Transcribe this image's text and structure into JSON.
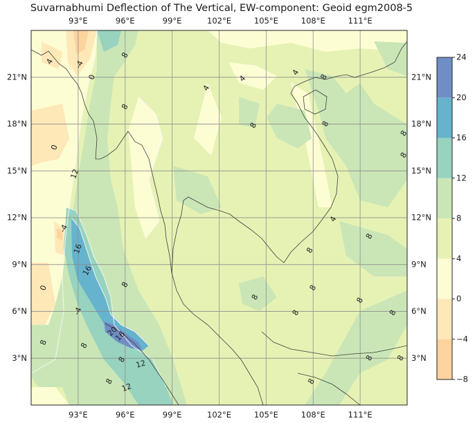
{
  "title": "Suvarnabhumi Deflection of The Vertical, EW-component: Geoid egm2008-5",
  "chart_data": {
    "type": "heatmap",
    "title": "Suvarnabhumi Deflection of The Vertical, EW-component: Geoid egm2008-5",
    "xlim": [
      90,
      114
    ],
    "ylim": [
      0,
      24
    ],
    "lon_ticks": [
      93,
      96,
      99,
      102,
      105,
      108,
      111
    ],
    "lat_ticks": [
      3,
      6,
      9,
      12,
      15,
      18,
      21
    ],
    "lon_tick_labels": [
      "93°E",
      "96°E",
      "99°E",
      "102°E",
      "105°E",
      "108°E",
      "111°E"
    ],
    "lat_tick_labels": [
      "3°N",
      "6°N",
      "9°N",
      "12°N",
      "15°N",
      "18°N",
      "21°N"
    ],
    "grid": true,
    "colorbar": {
      "levels": [
        -8,
        -4,
        0,
        4,
        8,
        12,
        16,
        20,
        24
      ],
      "tick_labels": [
        "−8",
        "−4",
        "0",
        "4",
        "8",
        "12",
        "16",
        "20",
        "24"
      ],
      "colors": [
        "#fdd49e",
        "#fee8b8",
        "#fdfdd4",
        "#e6f2b4",
        "#cae6b6",
        "#97d3bf",
        "#66b3cd",
        "#6f8ec6"
      ],
      "placement": "right"
    },
    "contour_labels": [
      {
        "text": "4",
        "lon": 91.2,
        "lat": 22.0,
        "rot": -60
      },
      {
        "text": "-4",
        "lon": 93.1,
        "lat": 21.8,
        "rot": -65
      },
      {
        "text": "0",
        "lon": 93.9,
        "lat": 21.0,
        "rot": -70
      },
      {
        "text": "8",
        "lon": 96.0,
        "lat": 22.4,
        "rot": -60
      },
      {
        "text": "8",
        "lon": 96.0,
        "lat": 19.1,
        "rot": -60
      },
      {
        "text": "4",
        "lon": 101.2,
        "lat": 20.3,
        "rot": -60
      },
      {
        "text": "4",
        "lon": 103.5,
        "lat": 20.9,
        "rot": -45
      },
      {
        "text": "8",
        "lon": 104.2,
        "lat": 17.9,
        "rot": -60
      },
      {
        "text": "4",
        "lon": 106.9,
        "lat": 21.3,
        "rot": -60
      },
      {
        "text": "8",
        "lon": 108.7,
        "lat": 21.0,
        "rot": -60
      },
      {
        "text": "8",
        "lon": 108.8,
        "lat": 18.0,
        "rot": -60
      },
      {
        "text": "8",
        "lon": 113.8,
        "lat": 17.4,
        "rot": -60
      },
      {
        "text": "8",
        "lon": 113.8,
        "lat": 16.0,
        "rot": -60
      },
      {
        "text": "0",
        "lon": 91.5,
        "lat": 16.5,
        "rot": -70
      },
      {
        "text": "12",
        "lon": 92.8,
        "lat": 14.8,
        "rot": -70
      },
      {
        "text": "-4",
        "lon": 92.1,
        "lat": 11.3,
        "rot": -65
      },
      {
        "text": "16",
        "lon": 93.0,
        "lat": 10.0,
        "rot": -70
      },
      {
        "text": "16",
        "lon": 93.6,
        "lat": 8.6,
        "rot": -60
      },
      {
        "text": "4",
        "lon": 109.3,
        "lat": 11.9,
        "rot": -60
      },
      {
        "text": "8",
        "lon": 111.6,
        "lat": 10.8,
        "rot": -60
      },
      {
        "text": "8",
        "lon": 107.8,
        "lat": 9.9,
        "rot": -60
      },
      {
        "text": "0",
        "lon": 90.8,
        "lat": 7.5,
        "rot": -70
      },
      {
        "text": "8",
        "lon": 96.0,
        "lat": 7.7,
        "rot": -60
      },
      {
        "text": "8",
        "lon": 108.0,
        "lat": 7.5,
        "rot": -60
      },
      {
        "text": "8",
        "lon": 104.3,
        "lat": 6.9,
        "rot": -60
      },
      {
        "text": "8",
        "lon": 111.0,
        "lat": 6.7,
        "rot": -60
      },
      {
        "text": "8",
        "lon": 106.9,
        "lat": 5.9,
        "rot": -60
      },
      {
        "text": "8",
        "lon": 113.1,
        "lat": 5.9,
        "rot": -60
      },
      {
        "text": "-4",
        "lon": 93.0,
        "lat": 6.0,
        "rot": -65
      },
      {
        "text": "20",
        "lon": 95.2,
        "lat": 4.7,
        "rot": -45
      },
      {
        "text": "16",
        "lon": 95.7,
        "lat": 4.4,
        "rot": -45
      },
      {
        "text": "8",
        "lon": 90.8,
        "lat": 4.0,
        "rot": -70
      },
      {
        "text": "8",
        "lon": 93.4,
        "lat": 3.8,
        "rot": -60
      },
      {
        "text": "8",
        "lon": 95.8,
        "lat": 2.9,
        "rot": -60
      },
      {
        "text": "12",
        "lon": 97.0,
        "lat": 2.6,
        "rot": -15
      },
      {
        "text": "8",
        "lon": 111.6,
        "lat": 3.0,
        "rot": -60
      },
      {
        "text": "8",
        "lon": 113.6,
        "lat": 3.0,
        "rot": -60
      },
      {
        "text": "8",
        "lon": 95.0,
        "lat": 1.5,
        "rot": -60
      },
      {
        "text": "12",
        "lon": 96.1,
        "lat": 1.1,
        "rot": -20
      },
      {
        "text": "8",
        "lon": 107.9,
        "lat": 1.5,
        "rot": -60
      }
    ]
  }
}
